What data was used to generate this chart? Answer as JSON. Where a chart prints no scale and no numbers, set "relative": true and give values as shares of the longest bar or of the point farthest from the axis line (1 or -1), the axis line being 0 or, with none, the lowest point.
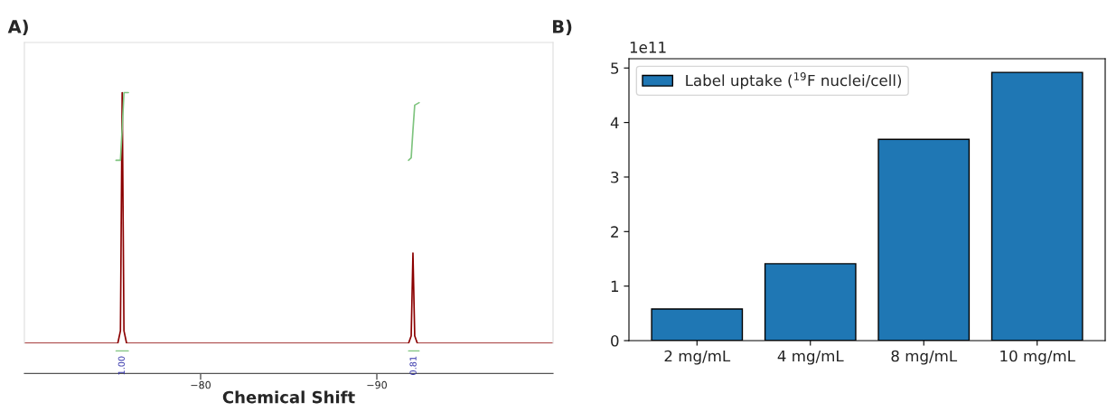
{
  "chart_data": [
    {
      "type": "line",
      "title": "A)",
      "xlabel": "Chemical Shift",
      "relative": true,
      "xlim": [
        -70,
        -100
      ],
      "xticks": [
        {
          "value": -80,
          "label": "−80"
        },
        {
          "value": -90,
          "label": "−90"
        }
      ],
      "tick_labels": "x",
      "grid": false,
      "legend": false,
      "marker": "none",
      "line_style": "solid",
      "series": [
        {
          "color": "#8b0000",
          "x": [
            -70,
            -75.3,
            -75.45,
            -75.55,
            -75.65,
            -75.8,
            -91.8,
            -91.95,
            -92.05,
            -92.15,
            -92.3,
            -100
          ],
          "values": [
            0,
            0,
            0.05,
            1,
            0.05,
            0,
            0,
            0.03,
            0.36,
            0.03,
            0,
            0
          ]
        },
        {
          "color": "#7fc47f",
          "x": [
            -75.2,
            -75.45,
            -75.55,
            -75.65,
            -75.9
          ],
          "values": [
            0.73,
            0.73,
            0.86,
            1.0,
            1.0
          ]
        },
        {
          "color": "#7fc47f",
          "x": [
            -91.8,
            -91.95,
            -92.05,
            -92.15,
            -92.4
          ],
          "values": [
            0.73,
            0.74,
            0.85,
            0.95,
            0.96
          ]
        }
      ],
      "annotations": [
        "1.00",
        "0.81"
      ]
    },
    {
      "type": "bar",
      "title": "B)",
      "categories": [
        "2 mg/mL",
        "4 mg/mL",
        "8 mg/mL",
        "10 mg/mL"
      ],
      "series": [
        {
          "name": "Label uptake ($^{19}$F nuclei/cell)",
          "color": "#1f77b4",
          "values": [
            0.58,
            1.41,
            3.69,
            4.92
          ]
        }
      ],
      "ylim": [
        0,
        5.17
      ],
      "yticks": [
        0,
        1,
        2,
        3,
        4,
        5
      ],
      "grid": false,
      "legend": "top left",
      "annotations": [
        "1e11"
      ]
    }
  ]
}
